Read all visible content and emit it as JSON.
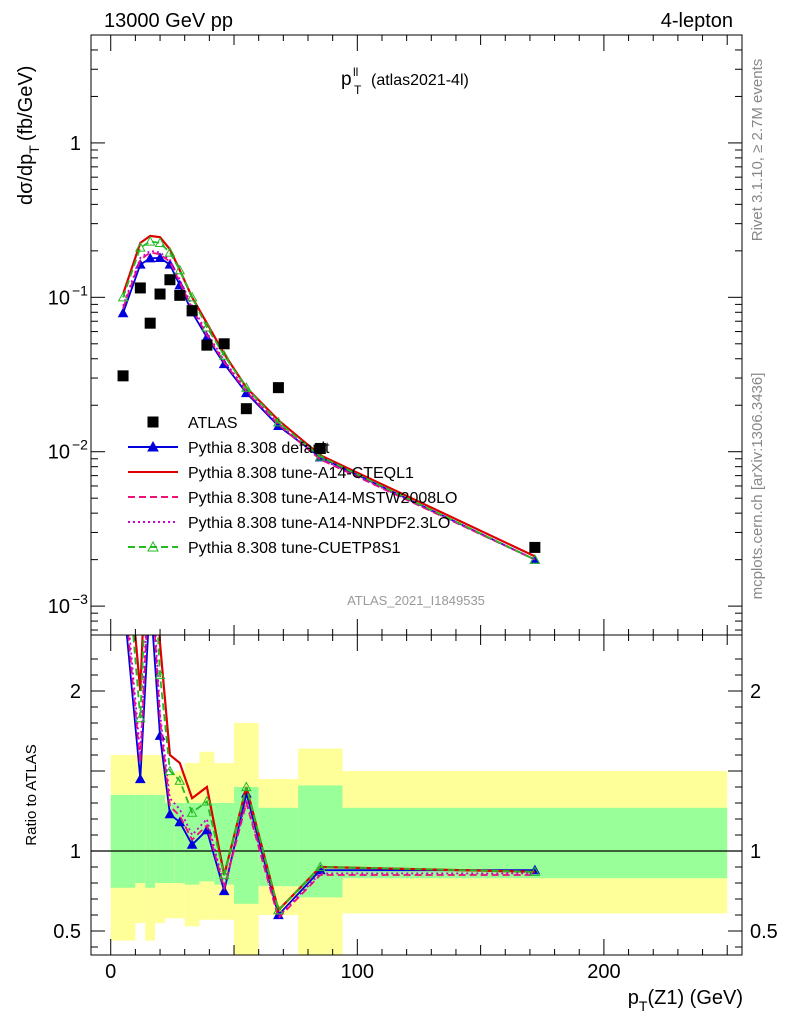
{
  "header": {
    "left": "13000 GeV pp",
    "right": "4-lepton"
  },
  "plot_title": {
    "main": "p",
    "sup": "ll",
    "sub": "T",
    "tag": "(atlas2021-4l)"
  },
  "watermark": "ATLAS_2021_I1849535",
  "side_text": {
    "top": "Rivet 3.1.10, ≥ 2.7M events",
    "bottom": "mcplots.cern.ch [arXiv:1306.3436]"
  },
  "chart_data": [
    {
      "type": "line",
      "scale": "log",
      "ylabel": "dσ/dp_T (fb/GeV)",
      "ylim": [
        0.00065,
        5.0
      ],
      "xlim": [
        -8,
        256
      ],
      "yticks": [
        {
          "v": 0.001,
          "label": "10",
          "exp": "−3"
        },
        {
          "v": 0.01,
          "label": "10",
          "exp": "−2"
        },
        {
          "v": 0.1,
          "label": "10",
          "exp": "−1"
        },
        {
          "v": 1,
          "label": "1",
          "exp": ""
        }
      ],
      "legend_placement": "bottom-left",
      "data": {
        "name": "ATLAS",
        "x": [
          5,
          12,
          16,
          20,
          24,
          28,
          33,
          39,
          46,
          55,
          68,
          85,
          172
        ],
        "y": [
          0.031,
          0.115,
          0.068,
          0.105,
          0.13,
          0.103,
          0.082,
          0.049,
          0.05,
          0.019,
          0.026,
          0.0105,
          0.0024
        ]
      },
      "series": [
        {
          "name": "Pythia 8.308 default",
          "color": "#0000dd",
          "style": "solid",
          "marker": "triangle-filled",
          "x": [
            5,
            12,
            16,
            20,
            24,
            28,
            33,
            39,
            46,
            55,
            68,
            85,
            172
          ],
          "y": [
            0.079,
            0.163,
            0.179,
            0.18,
            0.163,
            0.12,
            0.08,
            0.055,
            0.037,
            0.024,
            0.0147,
            0.0092,
            0.002
          ]
        },
        {
          "name": "Pythia 8.308 tune-A14-CTEQL1",
          "color": "#dd0000",
          "style": "solid",
          "marker": "none",
          "x": [
            5,
            12,
            16,
            20,
            24,
            28,
            33,
            39,
            46,
            55,
            68,
            85,
            172
          ],
          "y": [
            0.105,
            0.225,
            0.25,
            0.245,
            0.205,
            0.15,
            0.1,
            0.068,
            0.043,
            0.026,
            0.016,
            0.0095,
            0.0021
          ]
        },
        {
          "name": "Pythia 8.308 tune-A14-MSTW2008LO",
          "color": "#ee1177",
          "style": "dashed",
          "marker": "none",
          "x": [
            5,
            12,
            16,
            20,
            24,
            28,
            33,
            39,
            46,
            55,
            68,
            85,
            172
          ],
          "y": [
            0.085,
            0.175,
            0.195,
            0.19,
            0.17,
            0.125,
            0.085,
            0.057,
            0.038,
            0.0245,
            0.015,
            0.0089,
            0.002
          ]
        },
        {
          "name": "Pythia 8.308 tune-A14-NNPDF2.3LO",
          "color": "#cc00cc",
          "style": "dotted",
          "marker": "none",
          "x": [
            5,
            12,
            16,
            20,
            24,
            28,
            33,
            39,
            46,
            55,
            68,
            85,
            172
          ],
          "y": [
            0.088,
            0.18,
            0.2,
            0.195,
            0.175,
            0.13,
            0.088,
            0.059,
            0.039,
            0.025,
            0.0152,
            0.009,
            0.002
          ]
        },
        {
          "name": "Pythia 8.308 tune-CUETP8S1",
          "color": "#22bb22",
          "style": "dashed",
          "marker": "triangle-open",
          "x": [
            5,
            12,
            16,
            20,
            24,
            28,
            33,
            39,
            46,
            55,
            68,
            85,
            172
          ],
          "y": [
            0.1,
            0.21,
            0.23,
            0.225,
            0.195,
            0.15,
            0.1,
            0.064,
            0.042,
            0.026,
            0.0155,
            0.0093,
            0.002
          ]
        }
      ]
    },
    {
      "type": "line",
      "ylabel": "Ratio to ATLAS",
      "xlabel": "p_T(Z1) (GeV)",
      "ylim": [
        0.35,
        2.35
      ],
      "xlim": [
        -8,
        256
      ],
      "yticks": [
        0.5,
        1,
        2
      ],
      "xticks": [
        0,
        100,
        200
      ],
      "bands": [
        {
          "x0": 0,
          "x1": 10,
          "ylo": 0.44,
          "yhi": 1.6,
          "ilo": 0.77,
          "ihi": 1.35
        },
        {
          "x0": 10,
          "x1": 14,
          "ylo": 0.55,
          "yhi": 1.6,
          "ilo": 0.8,
          "ihi": 1.35
        },
        {
          "x0": 14,
          "x1": 18,
          "ylo": 0.44,
          "yhi": 1.6,
          "ilo": 0.77,
          "ihi": 1.35
        },
        {
          "x0": 18,
          "x1": 22,
          "ylo": 0.55,
          "yhi": 1.6,
          "ilo": 0.8,
          "ihi": 1.35
        },
        {
          "x0": 22,
          "x1": 26,
          "ylo": 0.58,
          "yhi": 1.48,
          "ilo": 0.8,
          "ihi": 1.3
        },
        {
          "x0": 26,
          "x1": 30,
          "ylo": 0.58,
          "yhi": 1.5,
          "ilo": 0.8,
          "ihi": 1.3
        },
        {
          "x0": 30,
          "x1": 36,
          "ylo": 0.53,
          "yhi": 1.55,
          "ilo": 0.79,
          "ihi": 1.3
        },
        {
          "x0": 36,
          "x1": 42,
          "ylo": 0.57,
          "yhi": 1.62,
          "ilo": 0.81,
          "ihi": 1.3
        },
        {
          "x0": 42,
          "x1": 50,
          "ylo": 0.57,
          "yhi": 1.55,
          "ilo": 0.79,
          "ihi": 1.3
        },
        {
          "x0": 50,
          "x1": 60,
          "ylo": 0.35,
          "yhi": 1.8,
          "ilo": 0.67,
          "ihi": 1.4
        },
        {
          "x0": 60,
          "x1": 76,
          "ylo": 0.6,
          "yhi": 1.45,
          "ilo": 0.78,
          "ihi": 1.27
        },
        {
          "x0": 76,
          "x1": 94,
          "ylo": 0.35,
          "yhi": 1.64,
          "ilo": 0.71,
          "ihi": 1.41
        },
        {
          "x0": 94,
          "x1": 250,
          "ylo": 0.61,
          "yhi": 1.5,
          "ilo": 0.83,
          "ihi": 1.27
        }
      ],
      "series": [
        {
          "name": "Pythia 8.308 default",
          "color": "#0000dd",
          "style": "solid",
          "marker": "triangle-filled",
          "x": [
            5,
            12,
            16,
            20,
            24,
            28,
            33,
            39,
            46,
            55,
            68,
            85,
            172
          ],
          "y": [
            2.6,
            1.45,
            2.6,
            1.72,
            1.23,
            1.18,
            1.04,
            1.13,
            0.75,
            1.36,
            0.6,
            0.88,
            0.88
          ]
        },
        {
          "name": "Pythia 8.308 tune-A14-CTEQL1",
          "color": "#dd0000",
          "style": "solid",
          "marker": "none",
          "x": [
            5,
            12,
            16,
            20,
            24,
            28,
            33,
            39,
            46,
            55,
            68,
            85,
            172
          ],
          "y": [
            3.2,
            2.0,
            3.5,
            2.3,
            1.6,
            1.55,
            1.33,
            1.4,
            0.85,
            1.4,
            0.63,
            0.9,
            0.87
          ]
        },
        {
          "name": "Pythia 8.308 tune-A14-MSTW2008LO",
          "color": "#ee1177",
          "style": "dashed",
          "marker": "none",
          "x": [
            5,
            12,
            16,
            20,
            24,
            28,
            33,
            39,
            46,
            55,
            68,
            85,
            172
          ],
          "y": [
            2.7,
            1.55,
            2.85,
            1.82,
            1.28,
            1.22,
            1.07,
            1.16,
            0.77,
            1.3,
            0.58,
            0.85,
            0.85
          ]
        },
        {
          "name": "Pythia 8.308 tune-A14-NNPDF2.3LO",
          "color": "#cc00cc",
          "style": "dotted",
          "marker": "none",
          "x": [
            5,
            12,
            16,
            20,
            24,
            28,
            33,
            39,
            46,
            55,
            68,
            85,
            172
          ],
          "y": [
            2.8,
            1.6,
            2.95,
            1.86,
            1.33,
            1.26,
            1.1,
            1.2,
            0.78,
            1.32,
            0.59,
            0.86,
            0.86
          ]
        },
        {
          "name": "Pythia 8.308 tune-CUETP8S1",
          "color": "#22bb22",
          "style": "dashed",
          "marker": "triangle-open",
          "x": [
            5,
            12,
            16,
            20,
            24,
            28,
            33,
            39,
            46,
            55,
            68,
            85,
            172
          ],
          "y": [
            3.1,
            1.83,
            3.3,
            2.1,
            1.5,
            1.44,
            1.24,
            1.31,
            0.85,
            1.4,
            0.63,
            0.9,
            0.87
          ]
        }
      ]
    }
  ]
}
